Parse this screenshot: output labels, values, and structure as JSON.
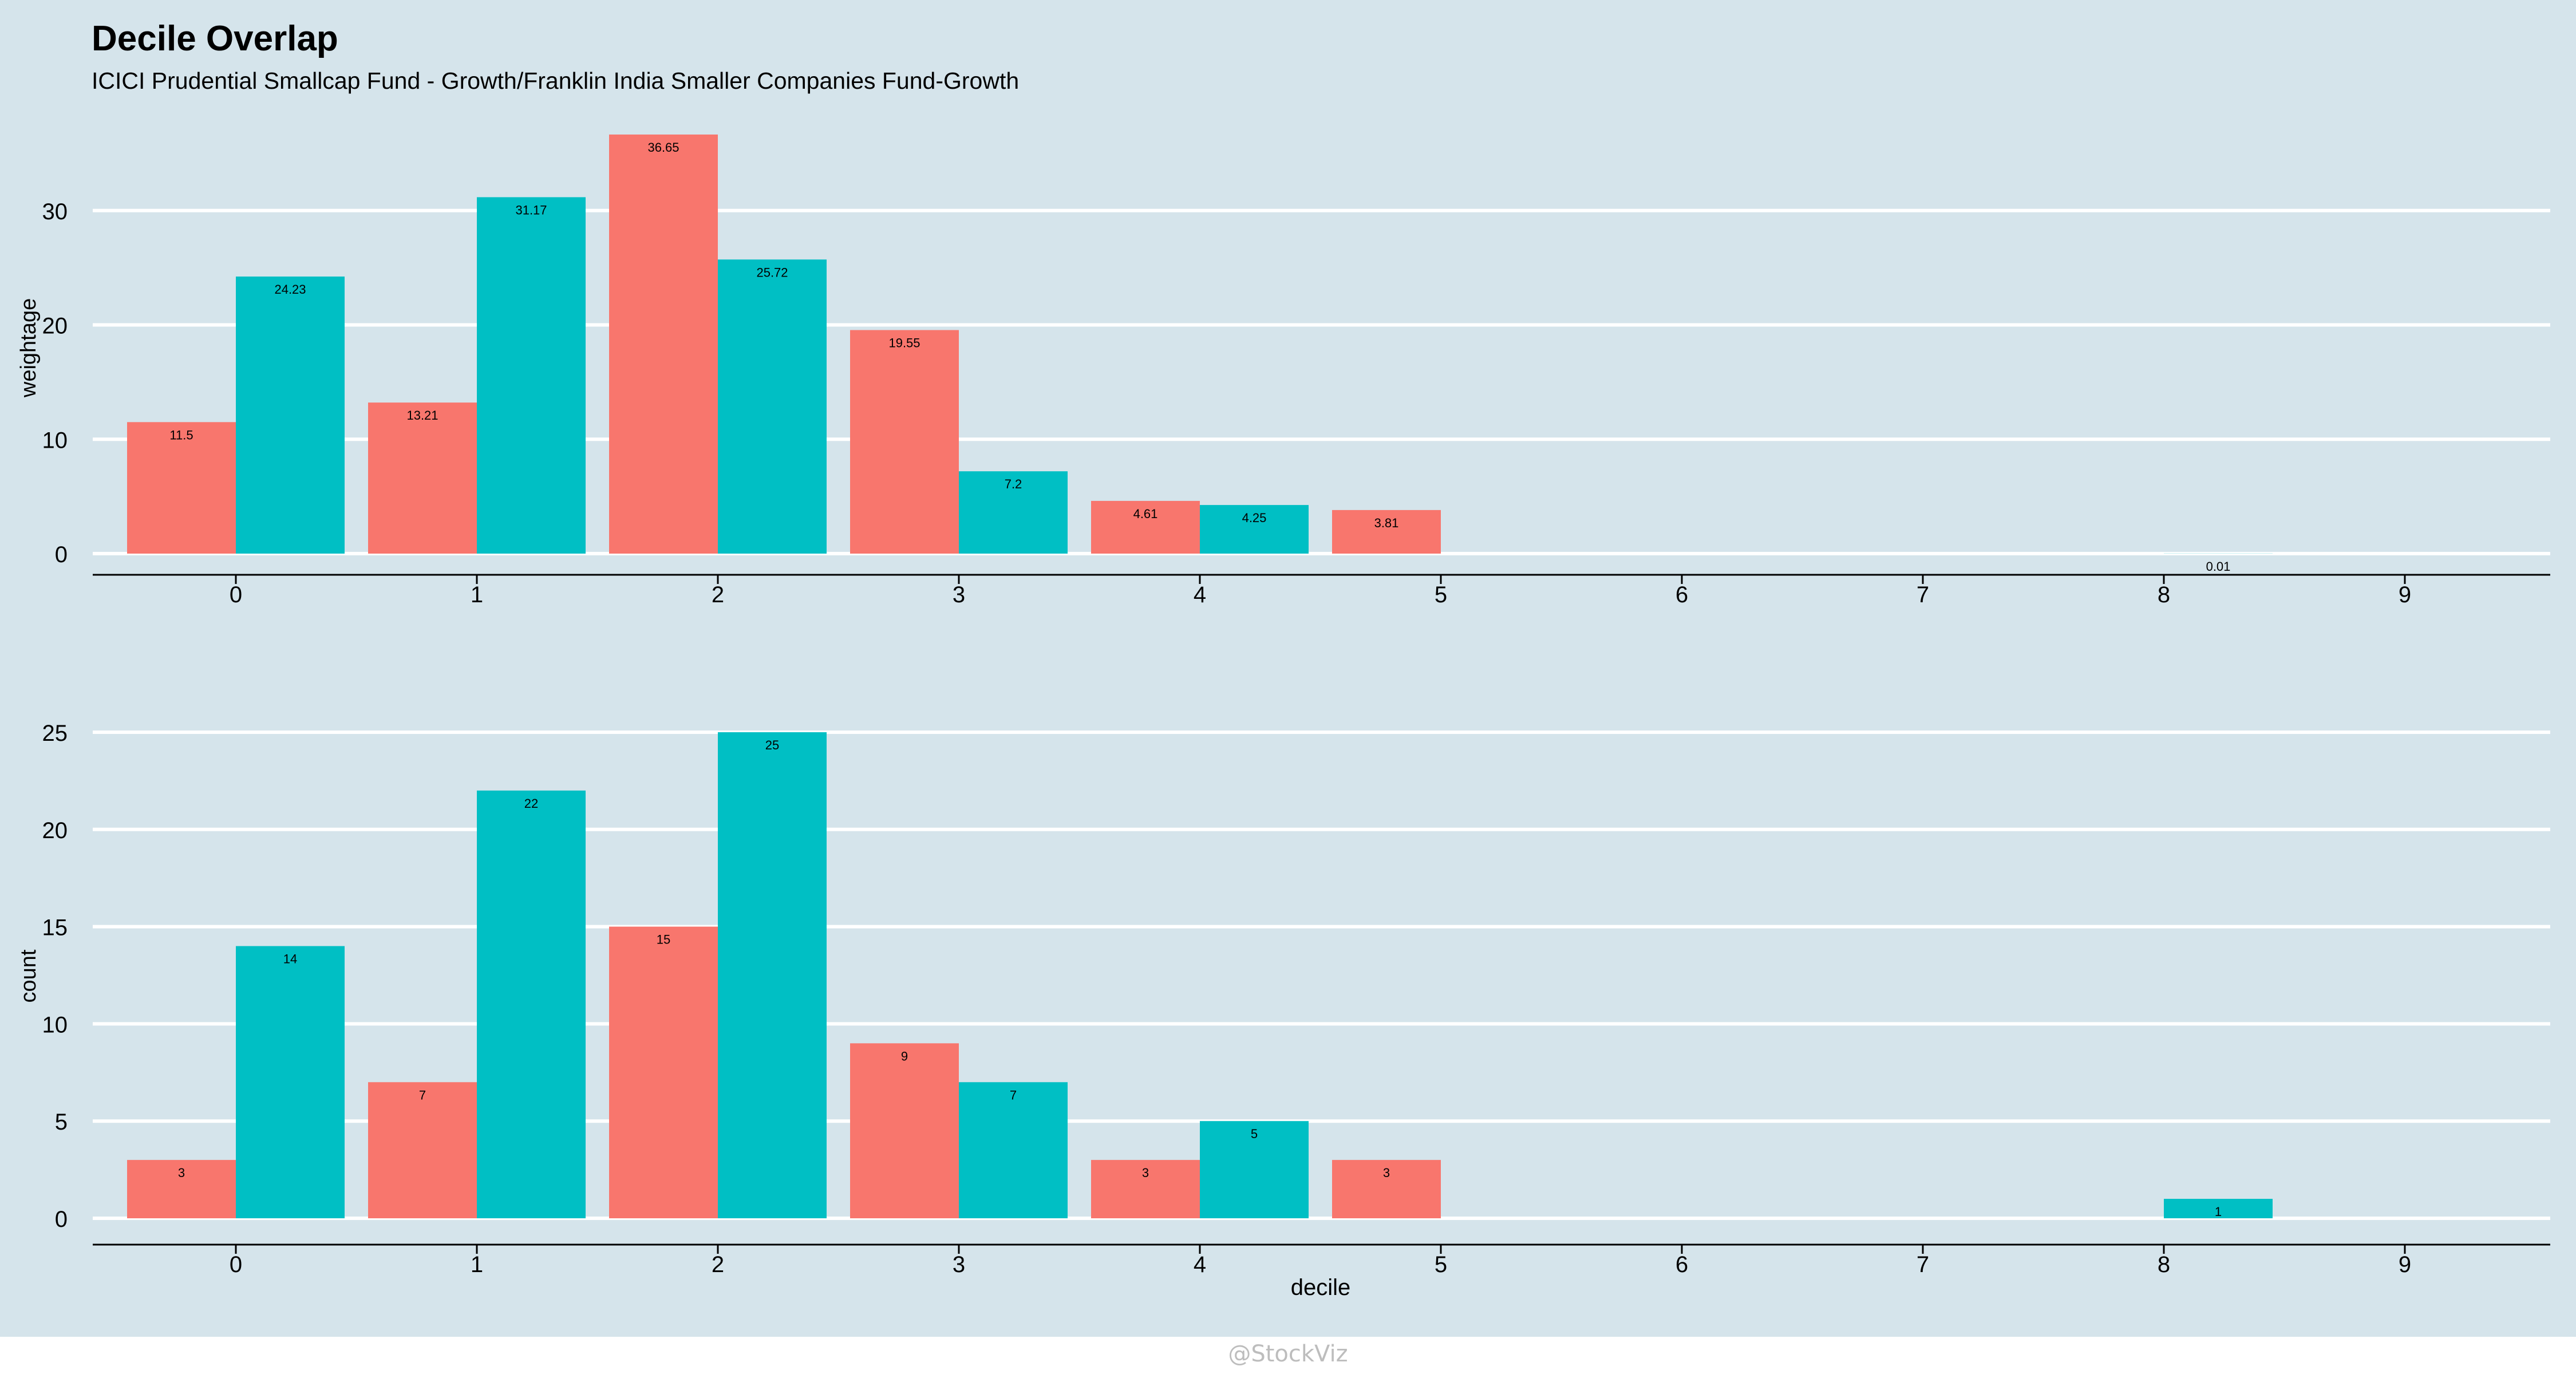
{
  "title": "Decile Overlap",
  "subtitle": "ICICI Prudential Smallcap Fund - Growth/Franklin India Smaller Companies Fund-Growth",
  "watermark": "@StockViz",
  "colors": {
    "background": "#d5e4eb",
    "series_a": "#f8766d",
    "series_b": "#00bfc4",
    "grid": "#ffffff",
    "axis": "#000000"
  },
  "chart_data": [
    {
      "type": "bar",
      "ylabel": "weightage",
      "xlabel": "",
      "categories": [
        "0",
        "1",
        "2",
        "3",
        "4",
        "5",
        "6",
        "7",
        "8",
        "9"
      ],
      "ylim": [
        0,
        37
      ],
      "yticks": [
        0,
        10,
        20,
        30
      ],
      "grid": true,
      "series": [
        {
          "color": "#f8766d",
          "bars": [
            {
              "x": 0,
              "value": 11.5,
              "label": "11.5"
            },
            {
              "x": 1,
              "value": 13.21,
              "label": "13.21"
            },
            {
              "x": 2,
              "value": 36.65,
              "label": "36.65"
            },
            {
              "x": 3,
              "value": 19.55,
              "label": "19.55"
            },
            {
              "x": 4,
              "value": 4.61,
              "label": "4.61"
            },
            {
              "x": 5,
              "value": 3.81,
              "label": "3.81"
            }
          ]
        },
        {
          "color": "#00bfc4",
          "bars": [
            {
              "x": 0,
              "value": 24.23,
              "label": "24.23"
            },
            {
              "x": 1,
              "value": 31.17,
              "label": "31.17"
            },
            {
              "x": 2,
              "value": 25.72,
              "label": "25.72"
            },
            {
              "x": 3,
              "value": 7.2,
              "label": "7.2"
            },
            {
              "x": 4,
              "value": 4.25,
              "label": "4.25"
            },
            {
              "x": 8,
              "value": 0.01,
              "label": "0.01"
            }
          ]
        }
      ]
    },
    {
      "type": "bar",
      "ylabel": "count",
      "xlabel": "decile",
      "categories": [
        "0",
        "1",
        "2",
        "3",
        "4",
        "5",
        "6",
        "7",
        "8",
        "9"
      ],
      "ylim": [
        0,
        25.5
      ],
      "yticks": [
        0,
        5,
        10,
        15,
        20,
        25
      ],
      "grid": true,
      "series": [
        {
          "color": "#f8766d",
          "bars": [
            {
              "x": 0,
              "value": 3,
              "label": "3"
            },
            {
              "x": 1,
              "value": 7,
              "label": "7"
            },
            {
              "x": 2,
              "value": 15,
              "label": "15"
            },
            {
              "x": 3,
              "value": 9,
              "label": "9"
            },
            {
              "x": 4,
              "value": 3,
              "label": "3"
            },
            {
              "x": 5,
              "value": 3,
              "label": "3"
            }
          ]
        },
        {
          "color": "#00bfc4",
          "bars": [
            {
              "x": 0,
              "value": 14,
              "label": "14"
            },
            {
              "x": 1,
              "value": 22,
              "label": "22"
            },
            {
              "x": 2,
              "value": 25,
              "label": "25"
            },
            {
              "x": 3,
              "value": 7,
              "label": "7"
            },
            {
              "x": 4,
              "value": 5,
              "label": "5"
            },
            {
              "x": 8,
              "value": 1,
              "label": "1"
            }
          ]
        }
      ]
    }
  ]
}
